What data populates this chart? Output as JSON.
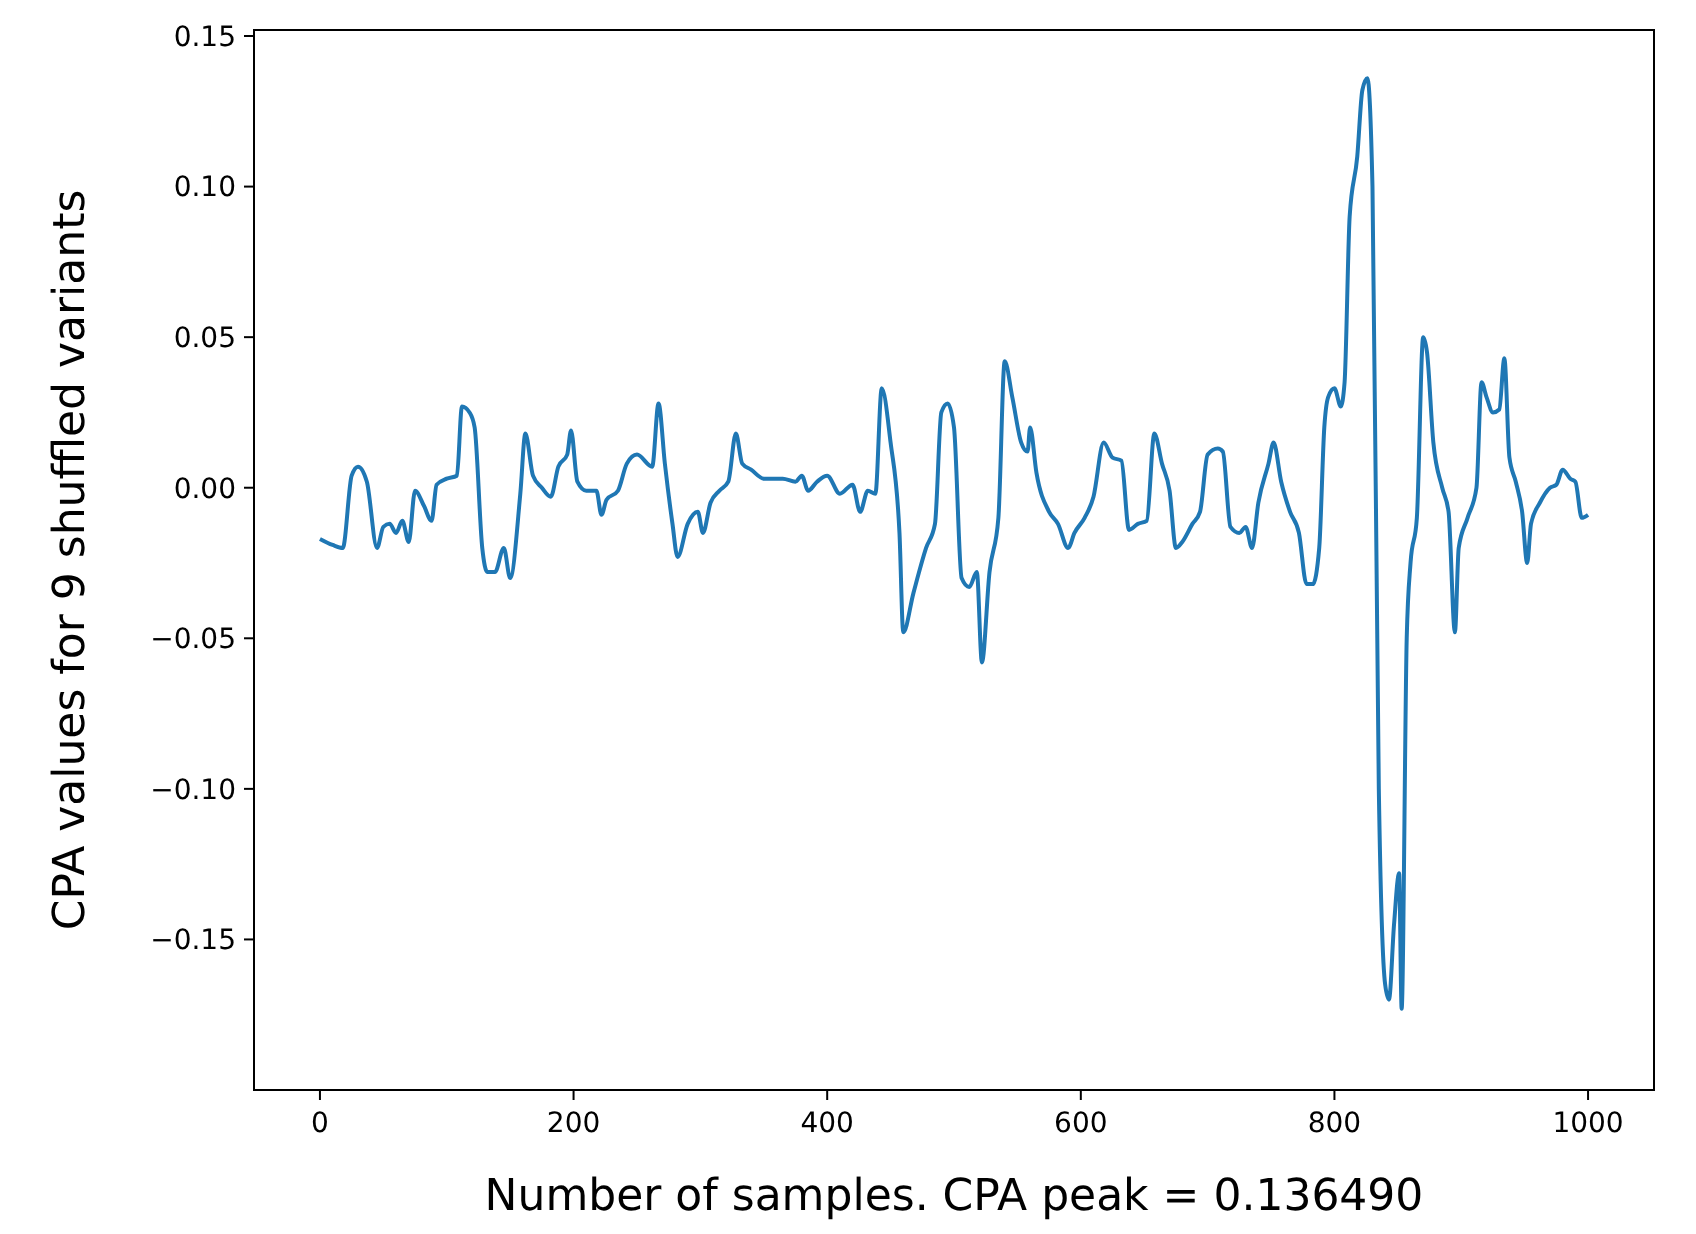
{
  "chart_data": {
    "type": "line",
    "xlabel": "Number of samples. CPA peak = 0.136490",
    "ylabel": "CPA values for 9 shuffled variants",
    "xlim": [
      -52,
      1052
    ],
    "ylim": [
      -0.2,
      0.152
    ],
    "xticks": [
      0,
      200,
      400,
      600,
      800,
      1000
    ],
    "yticks": [
      {
        "value": -0.15,
        "label": "−0.15"
      },
      {
        "value": -0.1,
        "label": "−0.10"
      },
      {
        "value": -0.05,
        "label": "−0.05"
      },
      {
        "value": 0,
        "label": "0.00"
      },
      {
        "value": 0.05,
        "label": "0.05"
      },
      {
        "value": 0.1,
        "label": "0.10"
      },
      {
        "value": 0.15,
        "label": "0.15"
      }
    ],
    "grid": false,
    "series": [
      {
        "color": "#1f77b4",
        "x": [
          0,
          10,
          18,
          25,
          30,
          37,
          45,
          50,
          55,
          60,
          65,
          70,
          75,
          82,
          88,
          92,
          100,
          108,
          112,
          118,
          122,
          128,
          132,
          138,
          145,
          150,
          158,
          162,
          168,
          175,
          182,
          188,
          195,
          198,
          203,
          210,
          218,
          222,
          226,
          235,
          242,
          250,
          262,
          267,
          272,
          278,
          282,
          290,
          298,
          302,
          308,
          315,
          322,
          328,
          333,
          340,
          350,
          365,
          375,
          380,
          385,
          392,
          400,
          410,
          420,
          426,
          432,
          438,
          443,
          450,
          457,
          460,
          468,
          478,
          485,
          490,
          495,
          500,
          506,
          512,
          518,
          522,
          528,
          535,
          540,
          546,
          553,
          558,
          560,
          565,
          575,
          582,
          590,
          595,
          603,
          610,
          618,
          625,
          632,
          638,
          645,
          652,
          658,
          664,
          670,
          675,
          680,
          688,
          694,
          700,
          708,
          712,
          718,
          725,
          730,
          735,
          740,
          748,
          752,
          758,
          765,
          772,
          778,
          783,
          788,
          792,
          795,
          800,
          805,
          808,
          812,
          818,
          822,
          826,
          830,
          835,
          840,
          843,
          847,
          851,
          853,
          857,
          860,
          865,
          870,
          873,
          878,
          885,
          890,
          895,
          898,
          905,
          912,
          916,
          920,
          925,
          930,
          934,
          938,
          943,
          948,
          952,
          955,
          962,
          970,
          975,
          980,
          986,
          990,
          995,
          1000
        ],
        "values": [
          -0.017,
          -0.019,
          -0.02,
          0.004,
          0.007,
          0.002,
          -0.02,
          -0.013,
          -0.012,
          -0.015,
          -0.011,
          -0.018,
          -0.001,
          -0.006,
          -0.011,
          0.001,
          0.003,
          0.004,
          0.027,
          0.025,
          0.02,
          -0.02,
          -0.028,
          -0.028,
          -0.02,
          -0.03,
          -0.002,
          0.018,
          0.004,
          0.0,
          -0.003,
          0.007,
          0.011,
          0.019,
          0.002,
          -0.001,
          -0.001,
          -0.009,
          -0.004,
          -0.001,
          0.008,
          0.011,
          0.007,
          0.028,
          0.008,
          -0.012,
          -0.023,
          -0.012,
          -0.008,
          -0.015,
          -0.005,
          -0.001,
          0.002,
          0.018,
          0.008,
          0.006,
          0.003,
          0.003,
          0.002,
          0.004,
          -0.001,
          0.002,
          0.004,
          -0.002,
          0.001,
          -0.008,
          -0.001,
          -0.002,
          0.033,
          0.015,
          -0.015,
          -0.048,
          -0.035,
          -0.02,
          -0.012,
          0.025,
          0.028,
          0.02,
          -0.03,
          -0.033,
          -0.028,
          -0.058,
          -0.028,
          -0.01,
          0.042,
          0.03,
          0.015,
          0.012,
          0.02,
          0.005,
          -0.008,
          -0.012,
          -0.02,
          -0.015,
          -0.01,
          -0.003,
          0.015,
          0.01,
          0.009,
          -0.014,
          -0.012,
          -0.011,
          0.018,
          0.008,
          -0.001,
          -0.02,
          -0.018,
          -0.012,
          -0.008,
          0.011,
          0.013,
          0.012,
          -0.013,
          -0.015,
          -0.013,
          -0.02,
          -0.005,
          0.008,
          0.015,
          0.002,
          -0.008,
          -0.015,
          -0.032,
          -0.032,
          -0.02,
          0.02,
          0.03,
          0.033,
          0.027,
          0.035,
          0.09,
          0.11,
          0.132,
          0.136,
          0.1,
          -0.1,
          -0.165,
          -0.17,
          -0.145,
          -0.128,
          -0.173,
          -0.05,
          -0.025,
          -0.01,
          0.05,
          0.045,
          0.015,
          0.0,
          -0.008,
          -0.048,
          -0.02,
          -0.01,
          0.0,
          0.035,
          0.03,
          0.025,
          0.026,
          0.043,
          0.01,
          0.002,
          -0.008,
          -0.025,
          -0.012,
          -0.005,
          0.0,
          0.001,
          0.006,
          0.003,
          0.002,
          -0.01,
          -0.009
        ]
      }
    ]
  }
}
